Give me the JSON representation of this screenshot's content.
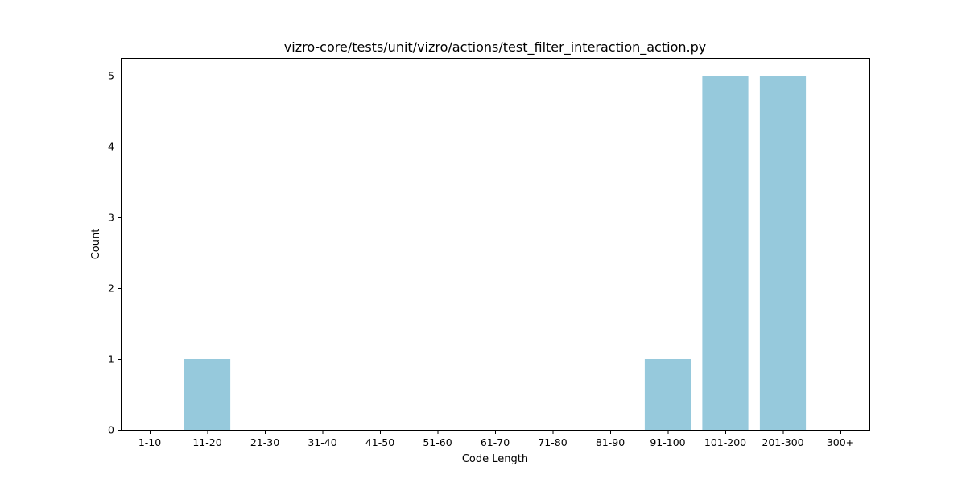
{
  "chart_data": {
    "type": "bar",
    "title": "vizro-core/tests/unit/vizro/actions/test_filter_interaction_action.py",
    "xlabel": "Code Length",
    "ylabel": "Count",
    "categories": [
      "1-10",
      "11-20",
      "21-30",
      "31-40",
      "41-50",
      "51-60",
      "61-70",
      "71-80",
      "81-90",
      "91-100",
      "101-200",
      "201-300",
      "300+"
    ],
    "values": [
      0,
      1,
      0,
      0,
      0,
      0,
      0,
      0,
      0,
      1,
      5,
      5,
      0
    ],
    "ylim": [
      0,
      5.25
    ],
    "yticks": [
      0,
      1,
      2,
      3,
      4,
      5
    ],
    "bar_color": "#96c9dc",
    "grid": false,
    "legend": "none"
  }
}
